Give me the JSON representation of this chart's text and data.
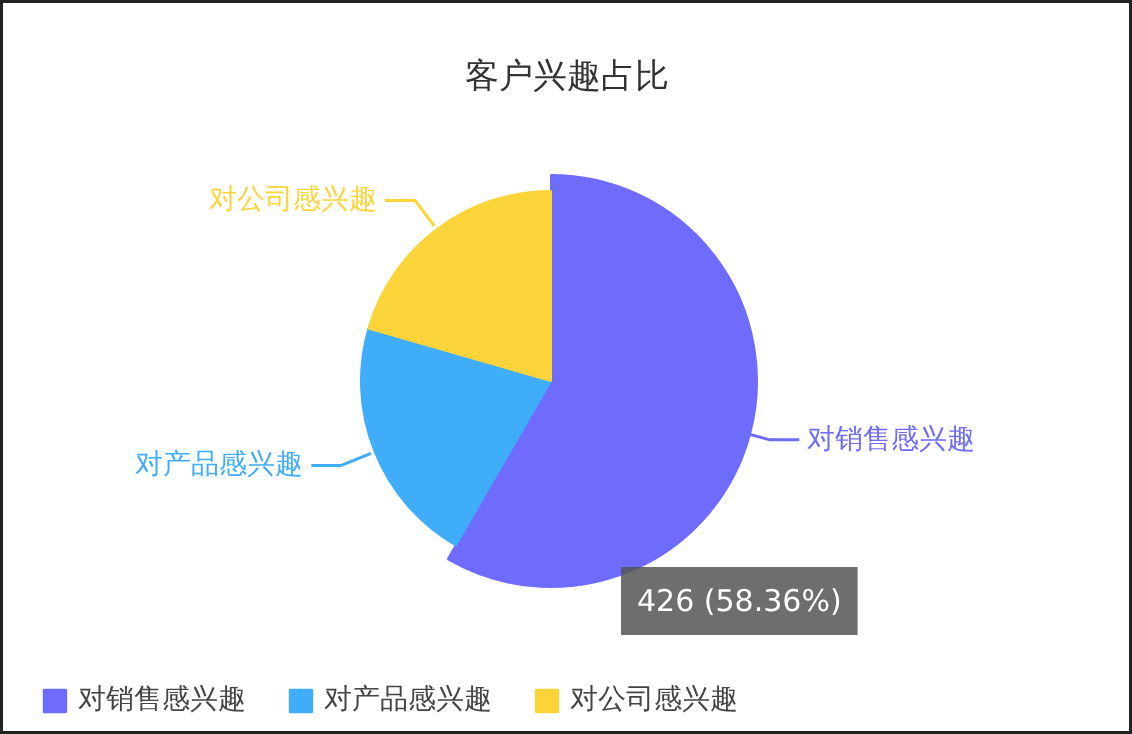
{
  "chart_data": {
    "type": "pie",
    "title": "客户兴趣占比",
    "categories": [
      "对销售感兴趣",
      "对产品感兴趣",
      "对公司感兴趣"
    ],
    "values": [
      58.36,
      21.1,
      20.54
    ],
    "colors": [
      "#6e6bfd",
      "#3fadfa",
      "#fbd43a"
    ],
    "legend": "bottom",
    "annotations": [
      "426 (58.36%)"
    ]
  }
}
